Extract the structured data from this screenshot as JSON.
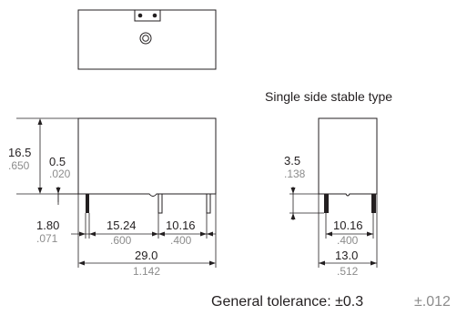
{
  "views": {
    "side": {
      "height": {
        "mm": "16.5",
        "inch": ".650"
      },
      "pin_length": {
        "mm": "0.5",
        "inch": ".020"
      },
      "pin_offset": {
        "mm": "1.80",
        "inch": ".071"
      },
      "pitch_1": {
        "mm": "15.24",
        "inch": ".600"
      },
      "pitch_2": {
        "mm": "10.16",
        "inch": ".400"
      },
      "length": {
        "mm": "29.0",
        "inch": "1.142"
      }
    },
    "end": {
      "title": "Single side stable type",
      "height": {
        "mm": "3.5",
        "inch": ".138"
      },
      "pitch": {
        "mm": "10.16",
        "inch": ".400"
      },
      "width": {
        "mm": "13.0",
        "inch": ".512"
      }
    }
  },
  "tolerance": {
    "label": "General tolerance: ±0.3",
    "inch": "±.012"
  },
  "colors": {
    "line": "#231f20",
    "inch_text": "#8c8c8c"
  }
}
